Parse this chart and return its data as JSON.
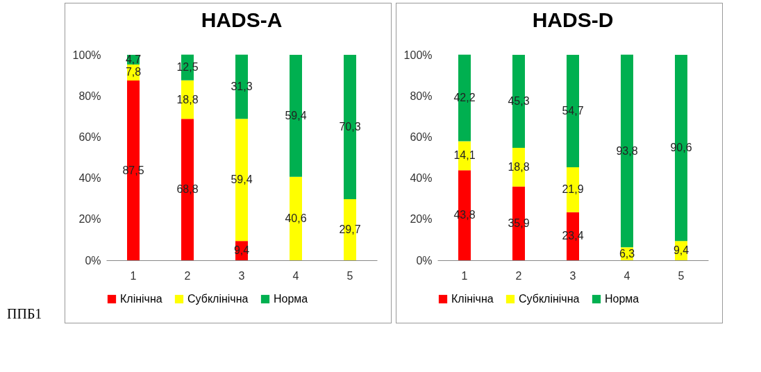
{
  "chart_data": [
    {
      "type": "bar",
      "title": "HADS-A",
      "stacked": true,
      "categories": [
        "1",
        "2",
        "3",
        "4",
        "5"
      ],
      "ylim": [
        0,
        100
      ],
      "yticks": [
        {
          "value": 0,
          "label": "0%"
        },
        {
          "value": 20,
          "label": "20%"
        },
        {
          "value": 40,
          "label": "40%"
        },
        {
          "value": 60,
          "label": "60%"
        },
        {
          "value": 80,
          "label": "80%"
        },
        {
          "value": 100,
          "label": "100%"
        }
      ],
      "legend": "bottom",
      "annotations": [
        "ППБ1"
      ],
      "series": [
        {
          "name": "Клінічна",
          "color": "#ff0000",
          "values": [
            87.5,
            68.8,
            9.4,
            0,
            0
          ],
          "value_labels": [
            "87,5",
            "68,8",
            "9,4",
            null,
            null
          ]
        },
        {
          "name": "Субклінічна",
          "color": "#ffff00",
          "values": [
            7.8,
            18.8,
            59.4,
            40.6,
            29.7
          ],
          "value_labels": [
            "7,8",
            "18,8",
            "59,4",
            "40,6",
            "29,7"
          ]
        },
        {
          "name": "Норма",
          "color": "#00b050",
          "values": [
            4.7,
            12.5,
            31.3,
            59.4,
            70.3
          ],
          "value_labels": [
            "4,7",
            "12,5",
            "31,3",
            "59,4",
            "70,3"
          ]
        }
      ]
    },
    {
      "type": "bar",
      "title": "HADS-D",
      "stacked": true,
      "categories": [
        "1",
        "2",
        "3",
        "4",
        "5"
      ],
      "ylim": [
        0,
        100
      ],
      "yticks": [
        {
          "value": 0,
          "label": "0%"
        },
        {
          "value": 20,
          "label": "20%"
        },
        {
          "value": 40,
          "label": "40%"
        },
        {
          "value": 60,
          "label": "60%"
        },
        {
          "value": 80,
          "label": "80%"
        },
        {
          "value": 100,
          "label": "100%"
        }
      ],
      "legend": "bottom",
      "series": [
        {
          "name": "Клінічна",
          "color": "#ff0000",
          "values": [
            43.8,
            35.9,
            23.4,
            0,
            0
          ],
          "value_labels": [
            "43,8",
            "35,9",
            "23,4",
            null,
            null
          ]
        },
        {
          "name": "Субклінічна",
          "color": "#ffff00",
          "values": [
            14.1,
            18.8,
            21.9,
            6.3,
            9.4
          ],
          "value_labels": [
            "14,1",
            "18,8",
            "21,9",
            "6,3",
            "9,4"
          ]
        },
        {
          "name": "Норма",
          "color": "#00b050",
          "values": [
            42.2,
            45.3,
            54.7,
            93.8,
            90.6
          ],
          "value_labels": [
            "42,2",
            "45,3",
            "54,7",
            "93,8",
            "90,6"
          ]
        }
      ]
    }
  ]
}
